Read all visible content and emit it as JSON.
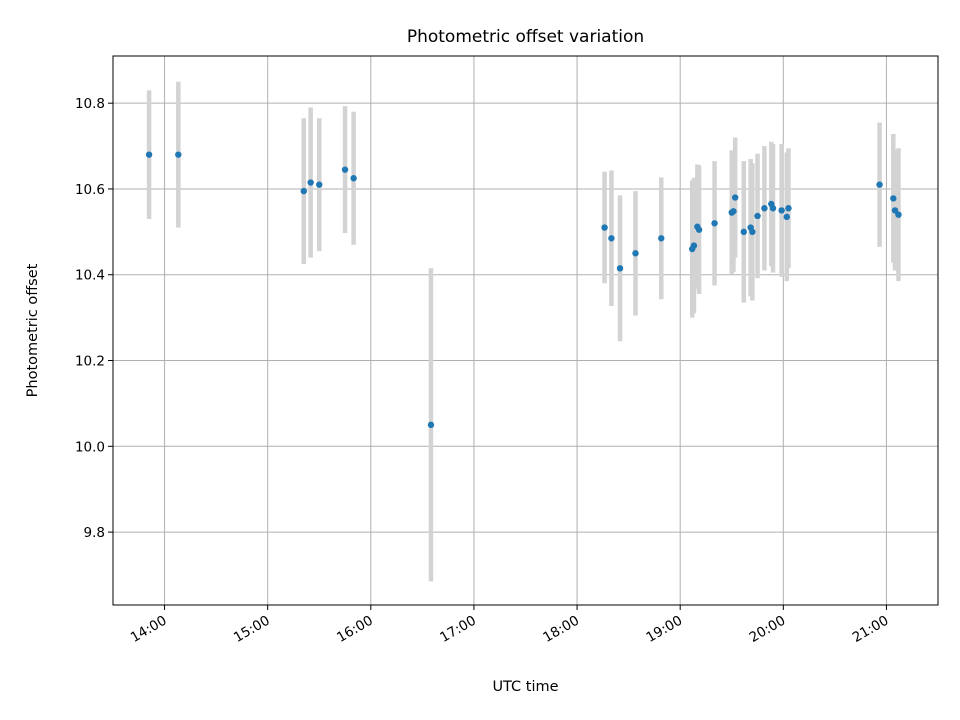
{
  "chart_data": {
    "type": "scatter",
    "title": "Photometric offset variation",
    "xlabel": "UTC time",
    "ylabel": "Photometric offset",
    "x_tick_labels": [
      "14:00",
      "15:00",
      "16:00",
      "17:00",
      "18:00",
      "19:00",
      "20:00",
      "21:00"
    ],
    "y_tick_labels": [
      "9.8",
      "10.0",
      "10.2",
      "10.4",
      "10.6",
      "10.8"
    ],
    "y_ticks": [
      9.8,
      10.0,
      10.2,
      10.4,
      10.6,
      10.8
    ],
    "ylim": [
      9.63,
      10.91
    ],
    "xlim": [
      "13:30",
      "21:30"
    ],
    "grid": true,
    "colors": {
      "marker": "#1f77b4",
      "errorbar": "#d3d3d3",
      "grid": "#b0b0b0"
    },
    "points": [
      {
        "x": "13:51",
        "y": 10.68,
        "err": 0.15
      },
      {
        "x": "14:08",
        "y": 10.68,
        "err": 0.17
      },
      {
        "x": "15:21",
        "y": 10.595,
        "err": 0.17
      },
      {
        "x": "15:25",
        "y": 10.615,
        "err": 0.175
      },
      {
        "x": "15:30",
        "y": 10.61,
        "err": 0.155
      },
      {
        "x": "15:45",
        "y": 10.645,
        "err": 0.148
      },
      {
        "x": "15:50",
        "y": 10.625,
        "err": 0.155
      },
      {
        "x": "16:35",
        "y": 10.05,
        "err": 0.365
      },
      {
        "x": "18:16",
        "y": 10.51,
        "err": 0.13
      },
      {
        "x": "18:20",
        "y": 10.485,
        "err": 0.158
      },
      {
        "x": "18:25",
        "y": 10.415,
        "err": 0.17
      },
      {
        "x": "18:34",
        "y": 10.45,
        "err": 0.145
      },
      {
        "x": "18:49",
        "y": 10.485,
        "err": 0.142
      },
      {
        "x": "19:07",
        "y": 10.46,
        "err": 0.16
      },
      {
        "x": "19:08",
        "y": 10.468,
        "err": 0.158
      },
      {
        "x": "19:10",
        "y": 10.512,
        "err": 0.145
      },
      {
        "x": "19:11",
        "y": 10.505,
        "err": 0.15
      },
      {
        "x": "19:20",
        "y": 10.52,
        "err": 0.145
      },
      {
        "x": "19:30",
        "y": 10.545,
        "err": 0.145
      },
      {
        "x": "19:31",
        "y": 10.548,
        "err": 0.142
      },
      {
        "x": "19:32",
        "y": 10.58,
        "err": 0.14
      },
      {
        "x": "19:37",
        "y": 10.5,
        "err": 0.165
      },
      {
        "x": "19:41",
        "y": 10.51,
        "err": 0.16
      },
      {
        "x": "19:42",
        "y": 10.5,
        "err": 0.16
      },
      {
        "x": "19:45",
        "y": 10.537,
        "err": 0.145
      },
      {
        "x": "19:49",
        "y": 10.555,
        "err": 0.145
      },
      {
        "x": "19:53",
        "y": 10.565,
        "err": 0.145
      },
      {
        "x": "19:54",
        "y": 10.555,
        "err": 0.15
      },
      {
        "x": "19:59",
        "y": 10.55,
        "err": 0.155
      },
      {
        "x": "20:02",
        "y": 10.535,
        "err": 0.15
      },
      {
        "x": "20:03",
        "y": 10.555,
        "err": 0.14
      },
      {
        "x": "20:56",
        "y": 10.61,
        "err": 0.145
      },
      {
        "x": "21:04",
        "y": 10.578,
        "err": 0.15
      },
      {
        "x": "21:05",
        "y": 10.55,
        "err": 0.14
      },
      {
        "x": "21:07",
        "y": 10.54,
        "err": 0.155
      }
    ]
  }
}
